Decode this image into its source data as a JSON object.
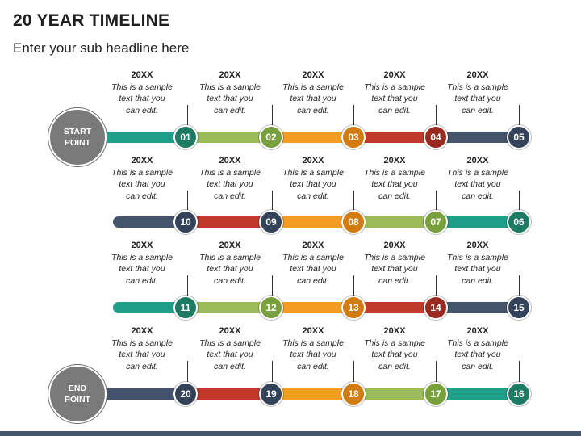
{
  "title": "20 YEAR TIMELINE",
  "subtitle": "Enter your sub headline here",
  "start_label_line1": "START",
  "start_label_line2": "POINT",
  "end_label_line1": "END",
  "end_label_line2": "POINT",
  "label_year": "20XX",
  "label_line1": "This is a sample",
  "label_line2": "text that you",
  "label_line3": "can edit.",
  "colors": {
    "navy": "#44546a",
    "teal": "#1f9e89",
    "green": "#9bbb59",
    "orange": "#f39c24",
    "red": "#c0392b",
    "gray": "#7a7a7a"
  },
  "rows": [
    {
      "nodes": [
        "01",
        "02",
        "03",
        "04",
        "05"
      ]
    },
    {
      "nodes": [
        "10",
        "09",
        "08",
        "07",
        "06"
      ]
    },
    {
      "nodes": [
        "11",
        "12",
        "13",
        "14",
        "15"
      ]
    },
    {
      "nodes": [
        "20",
        "19",
        "18",
        "17",
        "16"
      ]
    }
  ]
}
